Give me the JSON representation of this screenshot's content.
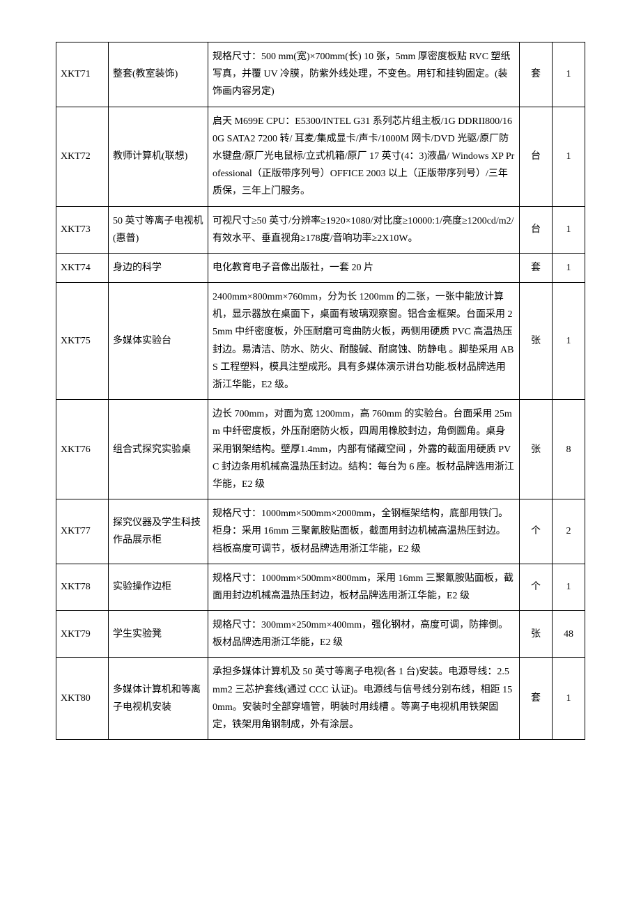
{
  "table": {
    "columns": [
      {
        "key": "code",
        "class": "col-code"
      },
      {
        "key": "name",
        "class": "col-name"
      },
      {
        "key": "spec",
        "class": "col-spec"
      },
      {
        "key": "unit",
        "class": "col-unit"
      },
      {
        "key": "qty",
        "class": "col-qty"
      }
    ],
    "rows": [
      {
        "code": "XKT71",
        "name": "整套(教室装饰)",
        "spec": "规格尺寸：500 mm(宽)×700mm(长) 10 张，5mm 厚密度板贴 RVC 塑纸写真，并覆 UV 冷膜，防紫外线处理，不变色。用钉和挂钩固定。(装饰画内容另定)",
        "unit": "套",
        "qty": "1"
      },
      {
        "code": "XKT72",
        "name": "教师计算机(联想)",
        "spec": "启天 M699E  CPU：E5300/INTEL G31 系列芯片组主板/1G DDRII800/160G SATA2 7200 转/ 耳麦/集成显卡/声卡/1000M 网卡/DVD 光驱/原厂防水键盘/原厂光电鼠标/立式机箱/原厂 17 英寸(4：3)液晶/ Windows XP Professional（正版带序列号）OFFICE 2003 以上（正版带序列号）/三年质保，三年上门服务。",
        "unit": "台",
        "qty": "1"
      },
      {
        "code": "XKT73",
        "name": "50 英寸等离子电视机(惠普)",
        "spec": "可视尺寸≥50 英寸/分辨率≥1920×1080/对比度≥10000:1/亮度≥1200cd/m2/有效水平、垂直视角≥178度/音响功率≥2X10W。",
        "unit": "台",
        "qty": "1"
      },
      {
        "code": "XKT74",
        "name": "身边的科学",
        "spec": "电化教育电子音像出版社，一套 20 片",
        "unit": "套",
        "qty": "1"
      },
      {
        "code": "XKT75",
        "name": "多媒体实验台",
        "spec": "2400mm×800mm×760mm，分为长 1200mm 的二张，一张中能放计算机，显示器放在桌面下，桌面有玻璃观察窗。铝合金框架。台面采用 25mm 中纤密度板，外压耐磨可弯曲防火板，两侧用硬质 PVC 高温热压封边。易清洁、防水、防火、耐酸碱、耐腐蚀、防静电 。脚垫采用 ABS 工程塑料，模具注塑成形。具有多媒体演示讲台功能.板材品牌选用浙江华能，E2 级。",
        "unit": "张",
        "qty": "1"
      },
      {
        "code": "XKT76",
        "name": "组合式探究实验桌",
        "spec": "边长 700mm，对面为宽 1200mm，高 760mm 的实验台。台面采用 25mm 中纤密度板，外压耐磨防火板，四周用橡胶封边，角倒圆角。桌身采用钢架结构。壁厚1.4mm，内部有储藏空间 ，外露的截面用硬质 PVC 封边条用机械高温热压封边。结构：每台为 6 座。板材品牌选用浙江华能，E2 级",
        "unit": "张",
        "qty": "8"
      },
      {
        "code": "XKT77",
        "name": "探究仪器及学生科技作品展示柜",
        "spec": "规格尺寸：1000mm×500mm×2000mm，全钢框架结构，底部用铁门。柜身：采用 16mm 三聚氰胺贴面板，截面用封边机械高温热压封边。档板高度可调节，板材品牌选用浙江华能，E2 级",
        "unit": "个",
        "qty": "2"
      },
      {
        "code": "XKT78",
        "name": "实验操作边柜",
        "spec": "规格尺寸：1000mm×500mm×800mm，采用 16mm 三聚氰胺贴面板，截面用封边机械高温热压封边，板材品牌选用浙江华能，E2 级",
        "unit": "个",
        "qty": "1"
      },
      {
        "code": "XKT79",
        "name": "学生实验凳",
        "spec": "规格尺寸：300mm×250mm×400mm，强化钢材，高度可调，防摔倒。板材品牌选用浙江华能，E2 级",
        "unit": "张",
        "qty": "48"
      },
      {
        "code": "XKT80",
        "name": "多媒体计算机和等离子电视机安装",
        "spec": "承担多媒体计算机及 50 英寸等离子电视(各 1 台)安装。电源导线：2.5mm2 三芯护套线(通过 CCC 认证)。电源线与信号线分别布线，相距 150mm。安装时全部穿墙管，明装时用线槽 。等离子电视机用铁架固定，铁架用角钢制成，外有涂层。",
        "unit": "套",
        "qty": "1"
      }
    ]
  }
}
